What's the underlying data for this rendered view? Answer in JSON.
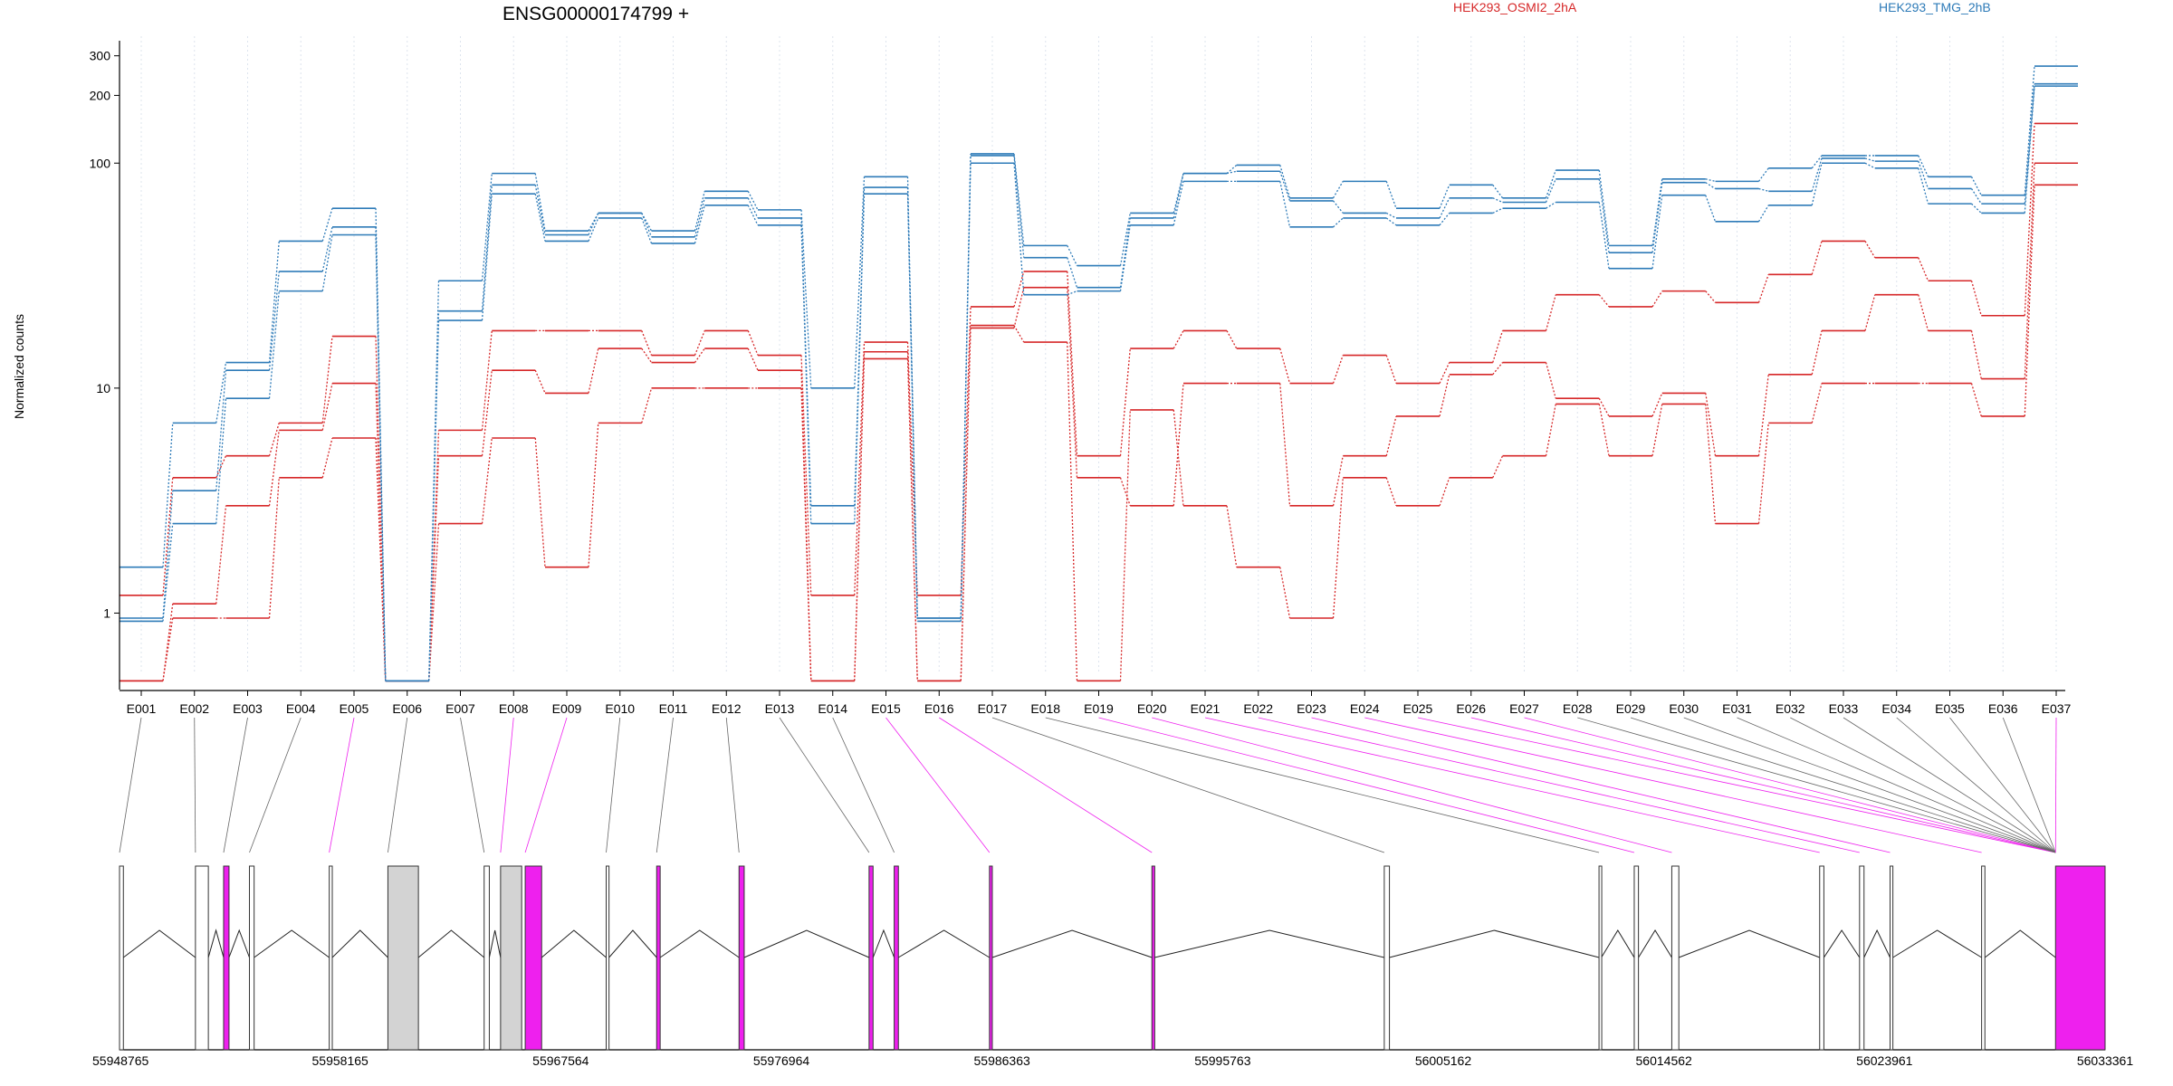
{
  "chart_data": {
    "type": "line",
    "title": "ENSG00000174799 +",
    "ylabel": "Normalized counts",
    "xlabel": "",
    "y_scale": "log",
    "ylim": [
      0.55,
      350
    ],
    "y_ticks": [
      1,
      10,
      100,
      200,
      300
    ],
    "grid": "vertical dotted lines at each exon bin",
    "legend_placement": "top",
    "colors": {
      "HEK293_OSMI2_2hA": "#d62728",
      "HEK293_TMG_2hB": "#2e7bb8",
      "highlight": "#ee20ee",
      "exon_fill": "#d3d3d3"
    },
    "categories": [
      "E001",
      "E002",
      "E003",
      "E004",
      "E005",
      "E006",
      "E007",
      "E008",
      "E009",
      "E010",
      "E011",
      "E012",
      "E013",
      "E014",
      "E015",
      "E016",
      "E017",
      "E018",
      "E019",
      "E020",
      "E021",
      "E022",
      "E023",
      "E024",
      "E025",
      "E026",
      "E027",
      "E028",
      "E029",
      "E030",
      "E031",
      "E032",
      "E033",
      "E034",
      "E035",
      "E036",
      "E037"
    ],
    "highlighted_bins": [
      "E005",
      "E008",
      "E009",
      "E015",
      "E016",
      "E019",
      "E020",
      "E021",
      "E022",
      "E023",
      "E024",
      "E025",
      "E026",
      "E027",
      "E037"
    ],
    "series": [
      {
        "name": "HEK293_OSMI2_2hA",
        "color": "#d62728",
        "values": [
          1.2,
          4,
          5,
          7,
          17,
          0.5,
          6.5,
          18,
          18,
          18,
          14,
          18,
          14,
          1.2,
          16,
          1.2,
          23,
          33,
          5,
          15,
          18,
          15,
          10.5,
          14,
          10.5,
          13,
          18,
          26,
          23,
          27,
          24,
          32,
          45,
          38,
          30,
          21,
          150
        ]
      },
      {
        "name": "HEK293_OSMI2_2hA",
        "color": "#d62728",
        "values": [
          0.5,
          1.1,
          3,
          6.5,
          10.5,
          0.5,
          5,
          12,
          9.5,
          15,
          13,
          15,
          12,
          0.5,
          13.5,
          0.5,
          18.5,
          28,
          4,
          3,
          10.5,
          10.5,
          3,
          5,
          7.5,
          11.5,
          13,
          9,
          7.5,
          9.5,
          5,
          11.5,
          18,
          26,
          18,
          11,
          100
        ]
      },
      {
        "name": "HEK293_OSMI2_2hA",
        "color": "#d62728",
        "values": [
          0.5,
          0.95,
          0.95,
          4,
          6,
          0.5,
          2.5,
          6,
          1.6,
          7,
          10,
          10,
          10,
          0.5,
          14.5,
          0.5,
          19,
          16,
          0.5,
          8,
          3,
          1.6,
          0.95,
          4,
          3,
          4,
          5,
          8.5,
          5,
          8.5,
          2.5,
          7,
          10.5,
          10.5,
          10.5,
          7.5,
          80
        ]
      },
      {
        "name": "HEK293_TMG_2hB",
        "color": "#2e7bb8",
        "values": [
          1.6,
          7,
          13,
          45,
          63,
          0.5,
          30,
          90,
          50,
          60,
          50,
          75,
          62,
          10,
          87,
          0.95,
          110,
          43,
          35,
          60,
          90,
          98,
          70,
          83,
          63,
          80,
          70,
          93,
          43,
          85,
          83,
          95,
          108,
          108,
          87,
          72,
          270
        ]
      },
      {
        "name": "HEK293_TMG_2hB",
        "color": "#2e7bb8",
        "values": [
          0.95,
          3.5,
          12,
          33,
          52,
          0.5,
          22,
          80,
          48,
          60,
          47,
          70,
          57,
          3,
          78,
          0.95,
          108,
          38,
          28,
          57,
          90,
          92,
          68,
          60,
          57,
          70,
          67,
          85,
          40,
          82,
          77,
          75,
          105,
          102,
          77,
          66,
          225
        ]
      },
      {
        "name": "HEK293_TMG_2hB",
        "color": "#2e7bb8",
        "values": [
          0.92,
          2.5,
          9,
          27,
          48,
          0.5,
          20,
          73,
          45,
          57,
          44,
          65,
          53,
          2.5,
          73,
          0.92,
          100,
          26,
          27,
          53,
          83,
          83,
          52,
          57,
          53,
          60,
          63,
          67,
          34,
          72,
          55,
          65,
          100,
          95,
          66,
          60,
          220
        ]
      }
    ],
    "x_axis_coordinates": [
      "55948765",
      "55958165",
      "55967564",
      "55976964",
      "55986363",
      "55995763",
      "56005162",
      "56014562",
      "56023961",
      "56033361"
    ]
  },
  "legend": {
    "series_a": "HEK293_OSMI2_2hA",
    "series_b": "HEK293_TMG_2hB"
  },
  "gene_model": {
    "genomic_start": 55948765,
    "genomic_end": 56033361,
    "exons": [
      {
        "bin": "E001",
        "start": 55948765,
        "end": 55948930,
        "type": "coding",
        "highlight": false
      },
      {
        "bin": "E002",
        "start": 55952000,
        "end": 55952550,
        "type": "utr",
        "highlight": false
      },
      {
        "bin": "E003",
        "start": 55953200,
        "end": 55953430,
        "type": "coding",
        "highlight": true
      },
      {
        "bin": "E004",
        "start": 55954300,
        "end": 55954500,
        "type": "coding",
        "highlight": false
      },
      {
        "bin": "E005",
        "start": 55957700,
        "end": 55957830,
        "type": "coding",
        "highlight": false
      },
      {
        "bin": "E006",
        "start": 55960200,
        "end": 55961500,
        "type": "filled",
        "highlight": false
      },
      {
        "bin": "E007",
        "start": 55964300,
        "end": 55964520,
        "type": "coding",
        "highlight": false
      },
      {
        "bin": "E008",
        "start": 55965000,
        "end": 55965900,
        "type": "filled",
        "highlight": false
      },
      {
        "bin": "E009",
        "start": 55966050,
        "end": 55966750,
        "type": "coding",
        "highlight": true
      },
      {
        "bin": "E010",
        "start": 55969500,
        "end": 55969620,
        "type": "coding",
        "highlight": false
      },
      {
        "bin": "E011",
        "start": 55971650,
        "end": 55971800,
        "type": "coding",
        "highlight": true
      },
      {
        "bin": "E012",
        "start": 55975160,
        "end": 55975380,
        "type": "coding",
        "highlight": true
      },
      {
        "bin": "E013",
        "start": 55980700,
        "end": 55980870,
        "type": "coding",
        "highlight": true
      },
      {
        "bin": "E014",
        "start": 55981770,
        "end": 55981950,
        "type": "coding",
        "highlight": true
      },
      {
        "bin": "E015",
        "start": 55985830,
        "end": 55985950,
        "type": "coding",
        "highlight": true
      },
      {
        "bin": "E016",
        "start": 55992750,
        "end": 55992870,
        "type": "coding",
        "highlight": true
      },
      {
        "bin": "E017",
        "start": 56002650,
        "end": 56002870,
        "type": "coding",
        "highlight": false
      },
      {
        "bin": "E018",
        "start": 56011800,
        "end": 56011900,
        "type": "coding",
        "highlight": false
      },
      {
        "bin": "E019",
        "start": 56013300,
        "end": 56013480,
        "type": "coding",
        "highlight": false
      },
      {
        "bin": "E020",
        "start": 56014900,
        "end": 56015200,
        "type": "coding",
        "highlight": false
      },
      {
        "bin": "E021",
        "start": 56021200,
        "end": 56021380,
        "type": "coding",
        "highlight": false
      },
      {
        "bin": "E022",
        "start": 56022900,
        "end": 56023090,
        "type": "coding",
        "highlight": false
      },
      {
        "bin": "E023",
        "start": 56024200,
        "end": 56024320,
        "type": "coding",
        "highlight": false
      },
      {
        "bin": "E024",
        "start": 56028100,
        "end": 56028240,
        "type": "coding",
        "highlight": false
      },
      {
        "bin": "E025",
        "start": 56031250,
        "end": 56033361,
        "type": "coding",
        "highlight": true
      }
    ]
  }
}
